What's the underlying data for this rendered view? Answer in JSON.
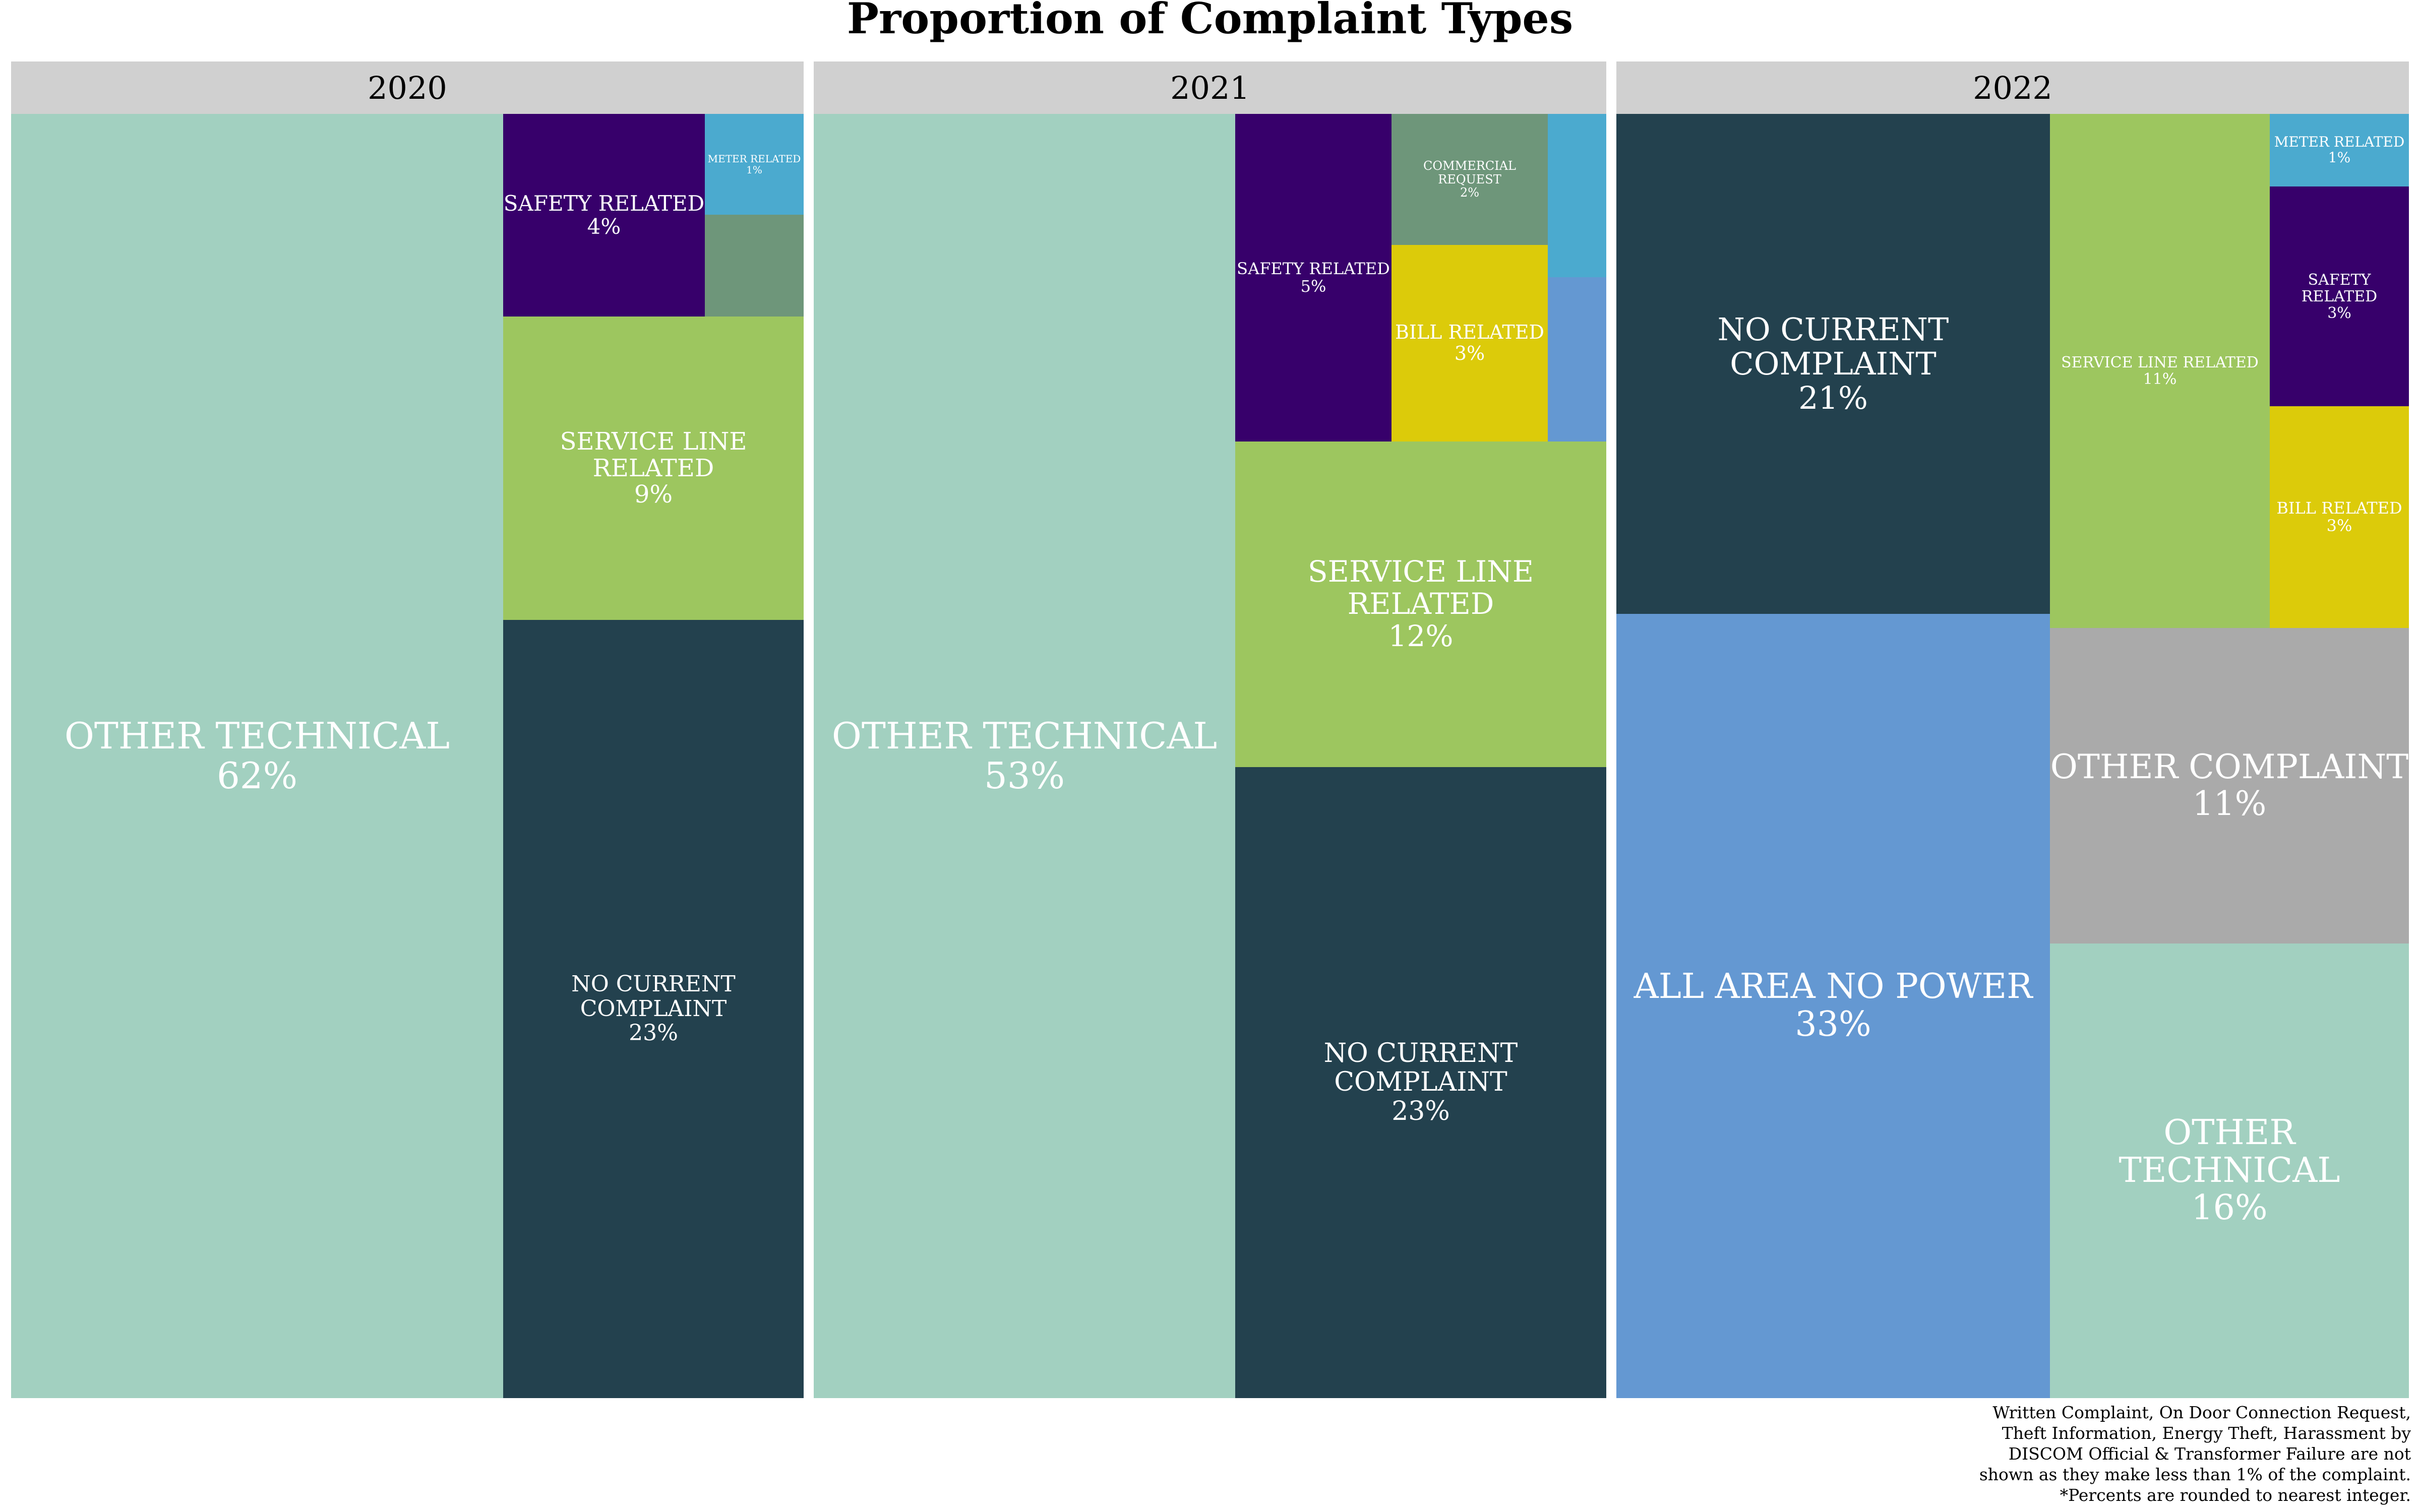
{
  "chart_data": {
    "type": "treemap",
    "title": "Proportion of Complaint Types",
    "panels": [
      {
        "year": "2020",
        "tiles": [
          {
            "name": "OTHER TECHNICAL",
            "value": 62,
            "label": "62%",
            "color": "#A2D0C0"
          },
          {
            "name": "NO CURRENT COMPLAINT",
            "value": 23,
            "label": "23%",
            "color": "#23414E"
          },
          {
            "name": "SERVICE LINE RELATED",
            "value": 9,
            "label": "9%",
            "color": "#9DC65F"
          },
          {
            "name": "SAFETY RELATED",
            "value": 4,
            "label": "4%",
            "color": "#37006B"
          },
          {
            "name": "METER RELATED",
            "value": 1,
            "label": "1%",
            "color": "#4BAACF"
          },
          {
            "name": "",
            "value": 1,
            "label": "",
            "color": "#6E967A"
          }
        ]
      },
      {
        "year": "2021",
        "tiles": [
          {
            "name": "OTHER TECHNICAL",
            "value": 53,
            "label": "53%",
            "color": "#A2D0C0"
          },
          {
            "name": "NO CURRENT COMPLAINT",
            "value": 23,
            "label": "23%",
            "color": "#23414E"
          },
          {
            "name": "SERVICE LINE RELATED",
            "value": 12,
            "label": "12%",
            "color": "#9DC65F"
          },
          {
            "name": "SAFETY RELATED",
            "value": 5,
            "label": "5%",
            "color": "#37006B"
          },
          {
            "name": "BILL RELATED",
            "value": 3,
            "label": "3%",
            "color": "#DCCB0A"
          },
          {
            "name": "COMMERCIAL REQUEST",
            "value": 2,
            "label": "2%",
            "color": "#6E967A"
          },
          {
            "name": "",
            "value": 1,
            "label": "",
            "color": "#4BAACF"
          },
          {
            "name": "",
            "value": 1,
            "label": "",
            "color": "#6498D2"
          }
        ]
      },
      {
        "year": "2022",
        "tiles": [
          {
            "name": "ALL AREA NO POWER",
            "value": 33,
            "label": "33%",
            "color": "#6498D2"
          },
          {
            "name": "NO CURRENT COMPLAINT",
            "value": 21,
            "label": "21%",
            "color": "#23414E"
          },
          {
            "name": "OTHER TECHNICAL",
            "value": 16,
            "label": "16%",
            "color": "#A2D0C0"
          },
          {
            "name": "OTHER COMPLAINT",
            "value": 11,
            "label": "11%",
            "color": "#AAAAAA"
          },
          {
            "name": "SERVICE LINE RELATED",
            "value": 11,
            "label": "11%",
            "color": "#9DC65F"
          },
          {
            "name": "SAFETY RELATED",
            "value": 3,
            "label": "3%",
            "color": "#37006B"
          },
          {
            "name": "BILL RELATED",
            "value": 3,
            "label": "3%",
            "color": "#DCCB0A"
          },
          {
            "name": "METER RELATED",
            "value": 1,
            "label": "1%",
            "color": "#4BAACF"
          }
        ]
      }
    ],
    "footnote": [
      "Written Complaint, On Door Connection Request,",
      "Theft Information, Energy Theft, Harassment by",
      "DISCOM Official & Transformer Failure are not",
      "shown as they make less than 1% of the complaint.",
      "*Percents are rounded to nearest integer."
    ]
  }
}
